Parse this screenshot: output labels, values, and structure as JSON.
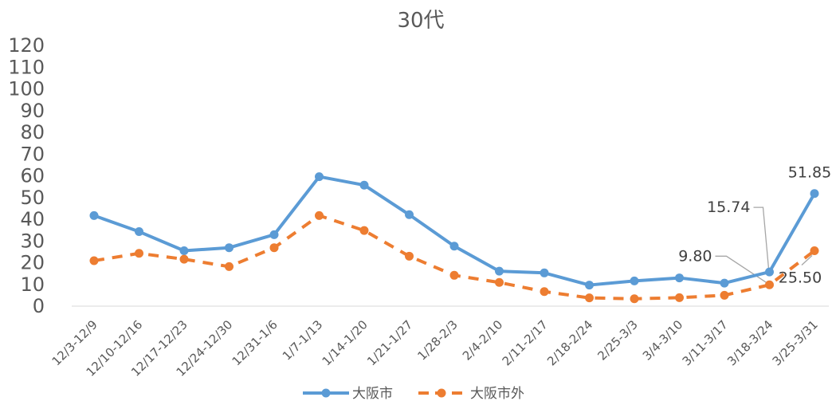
{
  "chart_data": {
    "type": "line",
    "title": "30代",
    "xlabel": "",
    "ylabel": "",
    "ylim": [
      0,
      120
    ],
    "yticks": [
      0,
      10,
      20,
      30,
      40,
      50,
      60,
      70,
      80,
      90,
      100,
      110,
      120
    ],
    "grid": false,
    "legend_position": "bottom",
    "categories": [
      "12/3-12/9",
      "12/10-12/16",
      "12/17-12/23",
      "12/24-12/30",
      "12/31-1/6",
      "1/7-1/13",
      "1/14-1/20",
      "1/21-1/27",
      "1/28-2/3",
      "2/4-2/10",
      "2/11-2/17",
      "2/18-2/24",
      "2/25-3/3",
      "3/4-3/10",
      "3/11-3/17",
      "3/18-3/24",
      "3/25-3/31"
    ],
    "series": [
      {
        "name": "大阪市",
        "color": "#5B9BD5",
        "style": "solid",
        "values": [
          41.7,
          34.3,
          25.5,
          26.9,
          32.9,
          59.6,
          55.7,
          42.1,
          27.6,
          16.1,
          15.3,
          9.7,
          11.6,
          13.0,
          10.6,
          15.74,
          51.85
        ],
        "labels": {
          "15": "15.74",
          "16": "51.85"
        }
      },
      {
        "name": "大阪市外",
        "color": "#ED7D31",
        "style": "dashed",
        "values": [
          20.9,
          24.3,
          21.6,
          18.2,
          26.9,
          41.7,
          34.8,
          23.0,
          14.2,
          10.9,
          6.7,
          3.8,
          3.4,
          3.9,
          5.0,
          9.8,
          25.5
        ],
        "labels": {
          "15": "9.80",
          "16": "25.50"
        }
      }
    ]
  }
}
